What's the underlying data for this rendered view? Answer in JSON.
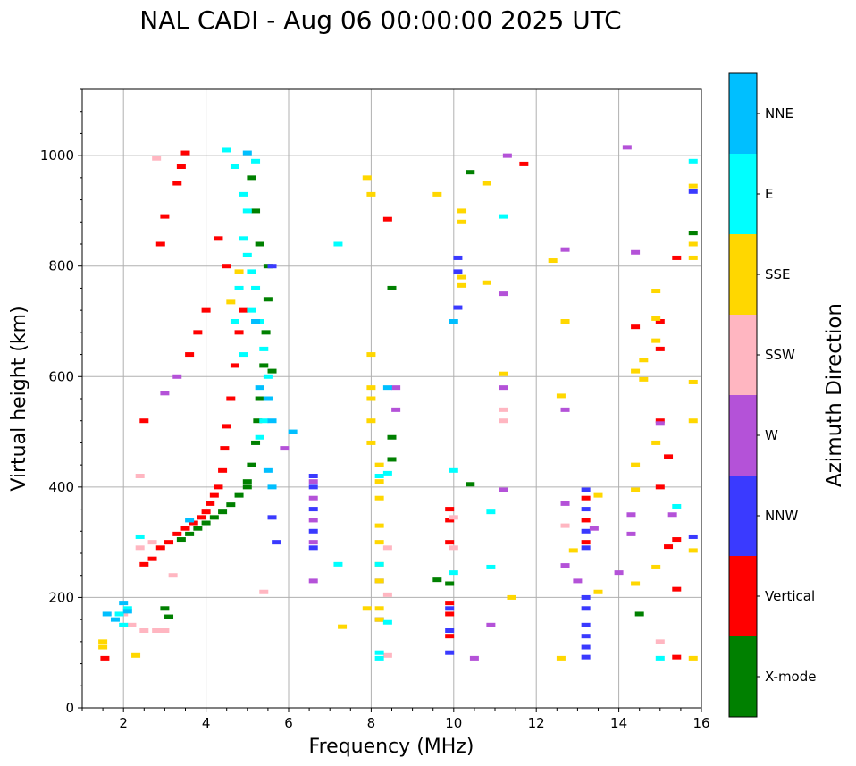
{
  "chart_data": {
    "type": "scatter",
    "title": "NAL CADI - Aug 06 00:00:00 2025 UTC",
    "xlabel": "Frequency (MHz)",
    "ylabel": "Virtual height (km)",
    "xlim": [
      1,
      16
    ],
    "ylim": [
      0,
      1120
    ],
    "xticks": [
      2,
      4,
      6,
      8,
      10,
      12,
      14,
      16
    ],
    "yticks": [
      0,
      200,
      400,
      600,
      800,
      1000
    ],
    "grid": true,
    "colorbar": {
      "label": "Azimuth Direction",
      "categories": [
        {
          "name": "X-mode",
          "color": "#008000"
        },
        {
          "name": "Vertical",
          "color": "#ff0000"
        },
        {
          "name": "NNW",
          "color": "#3a3aff"
        },
        {
          "name": "W",
          "color": "#b452d8"
        },
        {
          "name": "SSW",
          "color": "#ffb6c1"
        },
        {
          "name": "SSE",
          "color": "#ffd700"
        },
        {
          "name": "E",
          "color": "#00ffff"
        },
        {
          "name": "NNE",
          "color": "#00bfff"
        }
      ]
    },
    "series": [
      {
        "name": "X-mode",
        "points": [
          [
            3.4,
            305
          ],
          [
            3.6,
            315
          ],
          [
            3.8,
            325
          ],
          [
            4.0,
            335
          ],
          [
            4.2,
            345
          ],
          [
            4.4,
            355
          ],
          [
            4.6,
            368
          ],
          [
            4.8,
            385
          ],
          [
            5.0,
            410
          ],
          [
            5.1,
            440
          ],
          [
            5.2,
            480
          ],
          [
            5.25,
            520
          ],
          [
            5.3,
            560
          ],
          [
            5.4,
            620
          ],
          [
            5.45,
            680
          ],
          [
            5.5,
            740
          ],
          [
            5.5,
            800
          ],
          [
            5.3,
            840
          ],
          [
            5.2,
            900
          ],
          [
            5.1,
            960
          ],
          [
            3.1,
            165
          ],
          [
            3.0,
            180
          ],
          [
            9.6,
            232
          ],
          [
            9.9,
            225
          ],
          [
            10.4,
            405
          ],
          [
            10.4,
            970
          ],
          [
            14.5,
            170
          ],
          [
            15.8,
            860
          ],
          [
            8.5,
            450
          ],
          [
            8.5,
            490
          ],
          [
            8.5,
            760
          ],
          [
            5.0,
            400
          ],
          [
            5.6,
            610
          ]
        ]
      },
      {
        "name": "Vertical",
        "points": [
          [
            1.55,
            90
          ],
          [
            2.5,
            260
          ],
          [
            2.7,
            270
          ],
          [
            2.9,
            290
          ],
          [
            3.1,
            300
          ],
          [
            3.3,
            315
          ],
          [
            3.5,
            325
          ],
          [
            3.7,
            335
          ],
          [
            3.9,
            345
          ],
          [
            4.0,
            355
          ],
          [
            4.1,
            370
          ],
          [
            4.2,
            385
          ],
          [
            4.3,
            400
          ],
          [
            4.4,
            430
          ],
          [
            4.45,
            470
          ],
          [
            4.5,
            510
          ],
          [
            4.6,
            560
          ],
          [
            4.7,
            620
          ],
          [
            4.8,
            680
          ],
          [
            4.9,
            720
          ],
          [
            4.5,
            800
          ],
          [
            4.3,
            850
          ],
          [
            3.3,
            950
          ],
          [
            3.4,
            980
          ],
          [
            3.5,
            1005
          ],
          [
            2.9,
            840
          ],
          [
            3.0,
            890
          ],
          [
            2.5,
            520
          ],
          [
            3.6,
            640
          ],
          [
            3.8,
            680
          ],
          [
            4.0,
            720
          ],
          [
            9.9,
            130
          ],
          [
            9.9,
            170
          ],
          [
            9.9,
            190
          ],
          [
            9.9,
            300
          ],
          [
            9.9,
            340
          ],
          [
            9.9,
            360
          ],
          [
            13.2,
            300
          ],
          [
            13.2,
            340
          ],
          [
            13.2,
            380
          ],
          [
            15.0,
            400
          ],
          [
            15.0,
            520
          ],
          [
            15.0,
            650
          ],
          [
            15.0,
            700
          ],
          [
            15.2,
            455
          ],
          [
            15.4,
            815
          ],
          [
            15.2,
            292
          ],
          [
            15.4,
            305
          ],
          [
            15.4,
            92
          ],
          [
            15.4,
            215
          ],
          [
            14.4,
            690
          ],
          [
            8.4,
            885
          ],
          [
            11.7,
            985
          ]
        ]
      },
      {
        "name": "NNW",
        "points": [
          [
            6.6,
            290
          ],
          [
            6.6,
            320
          ],
          [
            6.6,
            360
          ],
          [
            6.6,
            400
          ],
          [
            6.6,
            420
          ],
          [
            13.2,
            290
          ],
          [
            13.2,
            320
          ],
          [
            13.2,
            360
          ],
          [
            13.2,
            395
          ],
          [
            13.2,
            200
          ],
          [
            13.2,
            180
          ],
          [
            13.2,
            150
          ],
          [
            13.2,
            130
          ],
          [
            13.2,
            110
          ],
          [
            13.2,
            92
          ],
          [
            9.9,
            100
          ],
          [
            9.9,
            140
          ],
          [
            9.9,
            180
          ],
          [
            10.1,
            790
          ],
          [
            10.1,
            815
          ],
          [
            10.1,
            725
          ],
          [
            15.8,
            935
          ],
          [
            15.8,
            310
          ],
          [
            5.7,
            300
          ],
          [
            5.6,
            345
          ],
          [
            5.6,
            800
          ],
          [
            8.2,
            160
          ],
          [
            8.2,
            230
          ]
        ]
      },
      {
        "name": "W",
        "points": [
          [
            6.6,
            230
          ],
          [
            6.6,
            300
          ],
          [
            6.6,
            340
          ],
          [
            6.6,
            380
          ],
          [
            6.6,
            410
          ],
          [
            5.9,
            470
          ],
          [
            8.6,
            540
          ],
          [
            8.6,
            580
          ],
          [
            11.2,
            750
          ],
          [
            11.2,
            580
          ],
          [
            11.2,
            395
          ],
          [
            12.7,
            540
          ],
          [
            12.7,
            830
          ],
          [
            12.7,
            370
          ],
          [
            12.7,
            258
          ],
          [
            13.4,
            325
          ],
          [
            14.0,
            245
          ],
          [
            14.3,
            350
          ],
          [
            14.3,
            315
          ],
          [
            14.4,
            825
          ],
          [
            14.2,
            1015
          ],
          [
            13.0,
            230
          ],
          [
            10.5,
            90
          ],
          [
            10.9,
            150
          ],
          [
            11.3,
            1000
          ],
          [
            15.0,
            515
          ],
          [
            15.3,
            350
          ],
          [
            3.0,
            570
          ],
          [
            3.3,
            600
          ]
        ]
      },
      {
        "name": "SSW",
        "points": [
          [
            2.4,
            420
          ],
          [
            2.4,
            290
          ],
          [
            2.7,
            300
          ],
          [
            2.0,
            170
          ],
          [
            2.2,
            150
          ],
          [
            2.5,
            140
          ],
          [
            2.8,
            140
          ],
          [
            3.0,
            140
          ],
          [
            2.8,
            995
          ],
          [
            11.2,
            520
          ],
          [
            11.2,
            540
          ],
          [
            12.7,
            330
          ],
          [
            15.0,
            120
          ],
          [
            8.4,
            95
          ],
          [
            8.4,
            205
          ],
          [
            8.4,
            290
          ],
          [
            10.0,
            290
          ],
          [
            10.0,
            345
          ],
          [
            5.4,
            210
          ],
          [
            3.2,
            240
          ]
        ]
      },
      {
        "name": "SSE",
        "points": [
          [
            1.5,
            110
          ],
          [
            1.5,
            120
          ],
          [
            2.3,
            95
          ],
          [
            8.0,
            480
          ],
          [
            8.0,
            520
          ],
          [
            8.0,
            560
          ],
          [
            8.0,
            580
          ],
          [
            8.0,
            640
          ],
          [
            7.9,
            960
          ],
          [
            8.0,
            930
          ],
          [
            8.2,
            230
          ],
          [
            8.2,
            260
          ],
          [
            8.2,
            300
          ],
          [
            8.2,
            330
          ],
          [
            8.2,
            380
          ],
          [
            8.2,
            410
          ],
          [
            8.2,
            440
          ],
          [
            8.2,
            160
          ],
          [
            8.2,
            180
          ],
          [
            9.6,
            930
          ],
          [
            10.2,
            900
          ],
          [
            10.2,
            880
          ],
          [
            10.2,
            780
          ],
          [
            10.2,
            765
          ],
          [
            10.8,
            770
          ],
          [
            10.8,
            950
          ],
          [
            11.2,
            605
          ],
          [
            11.4,
            200
          ],
          [
            12.6,
            565
          ],
          [
            12.7,
            700
          ],
          [
            12.4,
            810
          ],
          [
            12.6,
            90
          ],
          [
            12.9,
            285
          ],
          [
            13.5,
            210
          ],
          [
            13.5,
            385
          ],
          [
            14.4,
            225
          ],
          [
            14.4,
            395
          ],
          [
            14.4,
            440
          ],
          [
            14.4,
            610
          ],
          [
            14.6,
            595
          ],
          [
            14.6,
            630
          ],
          [
            14.9,
            480
          ],
          [
            14.9,
            755
          ],
          [
            14.9,
            705
          ],
          [
            14.9,
            665
          ],
          [
            14.9,
            255
          ],
          [
            15.8,
            90
          ],
          [
            15.8,
            285
          ],
          [
            15.8,
            520
          ],
          [
            15.8,
            590
          ],
          [
            15.8,
            815
          ],
          [
            15.8,
            840
          ],
          [
            15.8,
            945
          ],
          [
            7.3,
            147
          ],
          [
            7.9,
            180
          ],
          [
            4.8,
            790
          ],
          [
            4.6,
            735
          ]
        ]
      },
      {
        "name": "E",
        "points": [
          [
            4.7,
            980
          ],
          [
            4.9,
            930
          ],
          [
            5.0,
            900
          ],
          [
            4.9,
            850
          ],
          [
            5.0,
            820
          ],
          [
            5.1,
            790
          ],
          [
            5.2,
            760
          ],
          [
            5.1,
            720
          ],
          [
            5.3,
            700
          ],
          [
            5.4,
            650
          ],
          [
            5.5,
            600
          ],
          [
            5.5,
            560
          ],
          [
            5.4,
            520
          ],
          [
            5.3,
            490
          ],
          [
            4.8,
            760
          ],
          [
            4.7,
            700
          ],
          [
            4.9,
            640
          ],
          [
            5.2,
            990
          ],
          [
            4.5,
            1010
          ],
          [
            8.2,
            90
          ],
          [
            8.2,
            100
          ],
          [
            8.2,
            420
          ],
          [
            8.2,
            260
          ],
          [
            8.4,
            155
          ],
          [
            8.4,
            425
          ],
          [
            10.0,
            245
          ],
          [
            10.0,
            430
          ],
          [
            10.9,
            355
          ],
          [
            10.9,
            255
          ],
          [
            11.2,
            890
          ],
          [
            15.0,
            90
          ],
          [
            15.4,
            365
          ],
          [
            15.8,
            990
          ],
          [
            7.2,
            840
          ],
          [
            7.2,
            260
          ],
          [
            1.9,
            170
          ],
          [
            2.1,
            180
          ],
          [
            2.0,
            150
          ],
          [
            2.4,
            310
          ]
        ]
      },
      {
        "name": "NNE",
        "points": [
          [
            1.6,
            170
          ],
          [
            1.8,
            160
          ],
          [
            2.0,
            190
          ],
          [
            2.1,
            175
          ],
          [
            5.0,
            1005
          ],
          [
            5.2,
            700
          ],
          [
            5.3,
            580
          ],
          [
            5.5,
            560
          ],
          [
            5.6,
            520
          ],
          [
            6.1,
            500
          ],
          [
            5.6,
            400
          ],
          [
            5.5,
            430
          ],
          [
            3.6,
            340
          ],
          [
            10.0,
            700
          ],
          [
            8.4,
            580
          ]
        ]
      }
    ]
  }
}
